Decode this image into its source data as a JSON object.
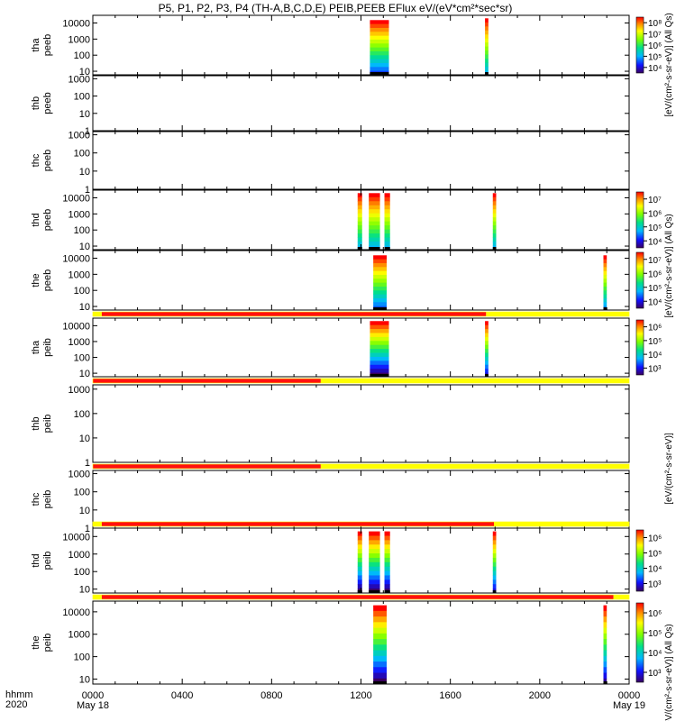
{
  "title": "P5, P1, P2, P3, P4 (TH-A,B,C,D,E) PEIB,PEEB EFlux eV/(eV*cm²*sec*sr)",
  "colorbar_labels": {
    "long": "[eV/(cm²-s-sr-eV)] (All Qs)",
    "short": "[eV/(cm²-s-sr-eV)]"
  },
  "x_axis": {
    "row1_label": "hhmm",
    "row2_label": "2020",
    "ticks": [
      {
        "hour": 0,
        "label": "0000",
        "sub": "May 18"
      },
      {
        "hour": 4,
        "label": "0400",
        "sub": ""
      },
      {
        "hour": 8,
        "label": "0800",
        "sub": ""
      },
      {
        "hour": 12,
        "label": "1200",
        "sub": ""
      },
      {
        "hour": 16,
        "label": "1600",
        "sub": ""
      },
      {
        "hour": 20,
        "label": "2000",
        "sub": ""
      },
      {
        "hour": 24,
        "label": "0000",
        "sub": "May 19"
      }
    ]
  },
  "chart_data": {
    "type": "heatmap",
    "title": "P5, P1, P2, P3, P4 (TH-A,B,C,D,E) PEIB,PEEB EFlux eV/(eV*cm²*sec*sr)",
    "x_unit": "hours since 2020-05-18 0000 UT",
    "xlim": [
      0,
      24
    ],
    "y_scale": "log",
    "panels": [
      {
        "probe": "tha",
        "species": "peeb",
        "ylabels": [
          "tha",
          "peeb"
        ],
        "yticks": [
          "10",
          "100",
          "1000",
          "10000"
        ],
        "ylim": [
          6,
          30000
        ],
        "cbar_ticks": [
          "10⁴",
          "10⁵",
          "10⁶",
          "10⁷",
          "10⁸"
        ],
        "bursts": [
          {
            "start": 12.4,
            "end": 13.25,
            "cutoff": 0.08,
            "low": 0.18
          },
          {
            "start": 17.55,
            "end": 17.7,
            "cutoff": 0.05,
            "low": 0.3
          }
        ]
      },
      {
        "probe": "thb",
        "species": "peeb",
        "ylabels": [
          "thb",
          "peeb"
        ],
        "yticks": [
          "1",
          "10",
          "100",
          "1000"
        ],
        "ylim": [
          1,
          1500
        ],
        "bursts": []
      },
      {
        "probe": "thc",
        "species": "peeb",
        "ylabels": [
          "thc",
          "peeb"
        ],
        "yticks": [
          "1",
          "10",
          "100",
          "1000"
        ],
        "ylim": [
          1,
          1500
        ],
        "bursts": []
      },
      {
        "probe": "thd",
        "species": "peeb",
        "ylabels": [
          "thd",
          "peeb"
        ],
        "yticks": [
          "10",
          "100",
          "1000",
          "10000"
        ],
        "ylim": [
          6,
          30000
        ],
        "cbar_ticks": [
          "10⁴",
          "10⁵",
          "10⁶",
          "10⁷"
        ],
        "bursts": [
          {
            "start": 11.85,
            "end": 12.05,
            "cutoff": 0.05,
            "low": 0.3
          },
          {
            "start": 12.35,
            "end": 12.85,
            "cutoff": 0.05,
            "low": 0.3
          },
          {
            "start": 13.05,
            "end": 13.3,
            "cutoff": 0.05,
            "low": 0.3
          },
          {
            "start": 17.9,
            "end": 18.05,
            "cutoff": 0.05,
            "low": 0.3
          }
        ]
      },
      {
        "probe": "the",
        "species": "peeb",
        "ylabels": [
          "the",
          "peeb"
        ],
        "yticks": [
          "10",
          "100",
          "1000",
          "10000"
        ],
        "ylim": [
          6,
          30000
        ],
        "cbar_ticks": [
          "10⁴",
          "10⁵",
          "10⁶",
          "10⁷"
        ],
        "bursts": [
          {
            "start": 12.55,
            "end": 13.15,
            "cutoff": 0.08,
            "low": 0.2
          },
          {
            "start": 22.85,
            "end": 23.0,
            "cutoff": 0.08,
            "low": 0.25
          }
        ]
      },
      {
        "probe": "tha",
        "species": "peib",
        "ylabels": [
          "tha",
          "peib"
        ],
        "yticks": [
          "10",
          "100",
          "1000",
          "10000"
        ],
        "ylim": [
          6,
          30000
        ],
        "cbar_ticks": [
          "10³",
          "10⁴",
          "10⁵",
          "10⁶"
        ],
        "mode_bar": [
          {
            "start": 0,
            "end": 0.4,
            "state": "yellow"
          },
          {
            "start": 0.4,
            "end": 17.6,
            "state": "red"
          },
          {
            "start": 17.6,
            "end": 24,
            "state": "yellow"
          }
        ],
        "bursts": [
          {
            "start": 12.4,
            "end": 13.25,
            "cutoff": 0.05,
            "low": 0.0
          },
          {
            "start": 17.55,
            "end": 17.7,
            "cutoff": 0.05,
            "low": 0.1
          }
        ]
      },
      {
        "probe": "thb",
        "species": "peib",
        "ylabels": [
          "thb",
          "peib"
        ],
        "yticks": [
          "1",
          "10",
          "100",
          "1000"
        ],
        "ylim": [
          1,
          1500
        ],
        "mode_bar": [
          {
            "start": 0,
            "end": 10.2,
            "state": "red"
          },
          {
            "start": 10.2,
            "end": 24,
            "state": "yellow"
          }
        ],
        "bursts": []
      },
      {
        "probe": "thc",
        "species": "peib",
        "ylabels": [
          "thc",
          "peib"
        ],
        "yticks": [
          "1",
          "10",
          "100",
          "1000"
        ],
        "ylim": [
          1,
          1500
        ],
        "mode_bar": [
          {
            "start": 0,
            "end": 10.2,
            "state": "red"
          },
          {
            "start": 10.2,
            "end": 24,
            "state": "yellow"
          }
        ],
        "bursts": []
      },
      {
        "probe": "thd",
        "species": "peib",
        "ylabels": [
          "thd",
          "peib"
        ],
        "yticks": [
          "10",
          "100",
          "1000",
          "10000"
        ],
        "ylim": [
          6,
          30000
        ],
        "cbar_ticks": [
          "10³",
          "10⁴",
          "10⁵",
          "10⁶"
        ],
        "mode_bar": [
          {
            "start": 0,
            "end": 0.4,
            "state": "yellow"
          },
          {
            "start": 0.4,
            "end": 17.95,
            "state": "red"
          },
          {
            "start": 17.95,
            "end": 24,
            "state": "yellow"
          }
        ],
        "bursts": [
          {
            "start": 11.85,
            "end": 12.05,
            "cutoff": 0.05,
            "low": 0.0
          },
          {
            "start": 12.35,
            "end": 12.85,
            "cutoff": 0.05,
            "low": 0.0
          },
          {
            "start": 13.05,
            "end": 13.3,
            "cutoff": 0.05,
            "low": 0.0
          },
          {
            "start": 17.9,
            "end": 18.05,
            "cutoff": 0.05,
            "low": 0.1
          }
        ]
      },
      {
        "probe": "the",
        "species": "peib",
        "ylabels": [
          "the",
          "peib"
        ],
        "yticks": [
          "10",
          "100",
          "1000",
          "10000"
        ],
        "ylim": [
          6,
          30000
        ],
        "cbar_ticks": [
          "10³",
          "10⁴",
          "10⁵",
          "10⁶"
        ],
        "mode_bar": [
          {
            "start": 0,
            "end": 0.4,
            "state": "yellow"
          },
          {
            "start": 0.4,
            "end": 23.3,
            "state": "red"
          },
          {
            "start": 23.3,
            "end": 24,
            "state": "yellow"
          }
        ],
        "bursts": [
          {
            "start": 12.55,
            "end": 13.15,
            "cutoff": 0.05,
            "low": 0.0
          },
          {
            "start": 22.85,
            "end": 23.0,
            "cutoff": 0.05,
            "low": 0.05
          }
        ]
      }
    ]
  }
}
